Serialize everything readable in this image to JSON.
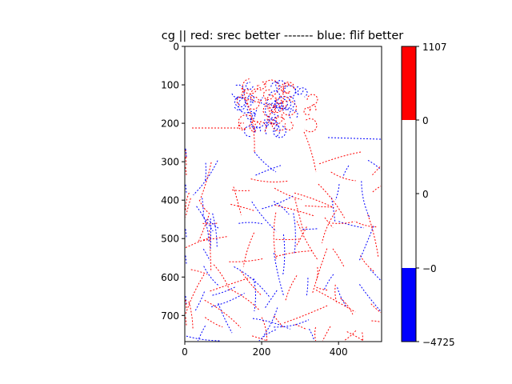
{
  "chart_data": {
    "type": "heatmap",
    "title": "cg || red: srec better ------- blue: flif better",
    "xlabel": "",
    "ylabel": "",
    "xlim": [
      0,
      512
    ],
    "ylim": [
      768,
      0
    ],
    "x_ticks": [
      "0",
      "200",
      "400"
    ],
    "x_tick_values": [
      0,
      200,
      400
    ],
    "y_ticks": [
      "0",
      "100",
      "200",
      "300",
      "400",
      "500",
      "600",
      "700"
    ],
    "y_tick_values": [
      0,
      100,
      200,
      300,
      400,
      500,
      600,
      700
    ],
    "colors": {
      "positive": "#ff0000",
      "zero": "#ffffff",
      "negative": "#0000ff",
      "axes": "#000000"
    },
    "colorbar": {
      "vmin": -4725,
      "vmax": 1107,
      "tick_labels": [
        "1107",
        "0",
        "0",
        "−0",
        "−4725"
      ],
      "segments": [
        {
          "from": 1107,
          "to": 0,
          "color": "#ff0000"
        },
        {
          "from": 0,
          "to": 0,
          "color": "#ffffff"
        },
        {
          "from": 0,
          "to": -4725,
          "color": "#0000ff"
        }
      ]
    },
    "image_description": "Sparse per-pixel difference map: thin red and blue edge strokes tracing a classical sculpture (curly-haired head, shoulders, drapery) on a white background."
  }
}
